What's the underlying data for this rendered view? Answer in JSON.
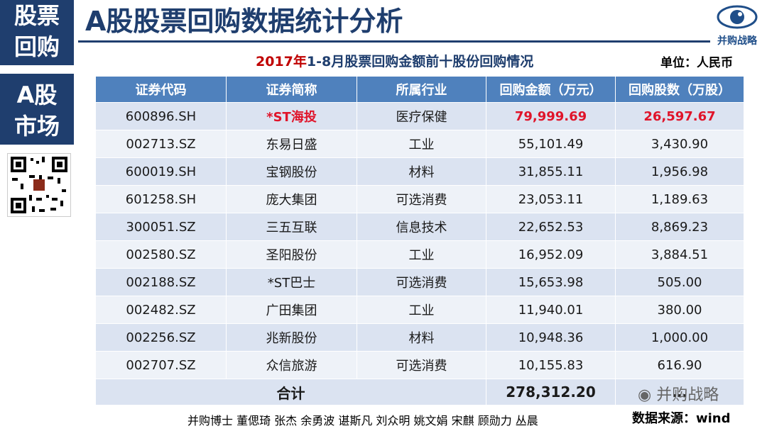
{
  "side": {
    "block1": [
      "股票",
      "回购"
    ],
    "block2": [
      "A股",
      "市场"
    ]
  },
  "header": {
    "title": "A股股票回购数据统计分析",
    "logo_text": "并购战略"
  },
  "table_title": {
    "highlight": "2017年",
    "rest": "1-8月股票回购金额前十股份回购情况"
  },
  "unit": "单位：人民币",
  "table": {
    "headers": [
      "证券代码",
      "证券简称",
      "所属行业",
      "回购金额（万元）",
      "回购股数（万股）"
    ],
    "rows": [
      [
        "600896.SH",
        "*ST海投",
        "医疗保健",
        "79,999.69",
        "26,597.67"
      ],
      [
        "002713.SZ",
        "东易日盛",
        "工业",
        "55,101.49",
        "3,430.90"
      ],
      [
        "600019.SH",
        "宝钢股份",
        "材料",
        "31,855.11",
        "1,956.98"
      ],
      [
        "601258.SH",
        "庞大集团",
        "可选消费",
        "23,053.11",
        "1,189.63"
      ],
      [
        "300051.SZ",
        "三五互联",
        "信息技术",
        "22,652.53",
        "8,869.23"
      ],
      [
        "002580.SZ",
        "圣阳股份",
        "工业",
        "16,952.09",
        "3,884.51"
      ],
      [
        "002188.SZ",
        "*ST巴士",
        "可选消费",
        "15,653.98",
        "505.00"
      ],
      [
        "002482.SZ",
        "广田集团",
        "工业",
        "11,940.01",
        "380.00"
      ],
      [
        "002256.SZ",
        "兆新股份",
        "材料",
        "10,948.36",
        "1,000.00"
      ],
      [
        "002707.SZ",
        "众信旅游",
        "可选消费",
        "10,155.83",
        "616.90"
      ]
    ],
    "total_label": "合计",
    "total_amount": "278,312.20",
    "total_shares": "…"
  },
  "footer": {
    "names": "并购博士 董偲琦 张杰 余勇波 谌斯凡 刘众明 姚文娟 宋麒 顾勋力 丛晨",
    "source": "数据来源：wind",
    "watermark": "并购战略"
  },
  "colors": {
    "navy": "#1f3e6e",
    "header_blue": "#4f81bd",
    "highlight_red": "#e0142a"
  }
}
